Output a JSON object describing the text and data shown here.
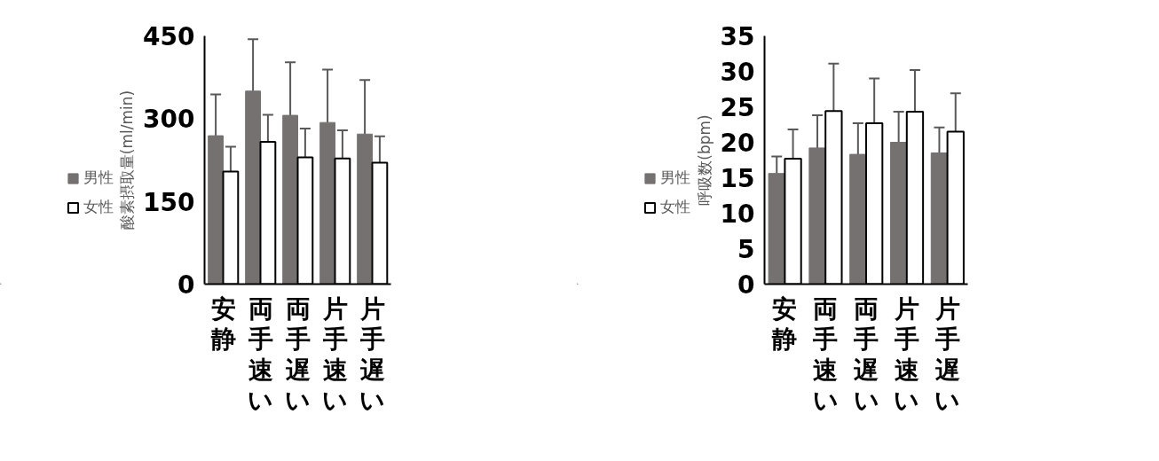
{
  "chart_data": [
    {
      "type": "bar",
      "ylabel": "酸素摂取量(ml/min)",
      "categories": [
        "安静",
        "両手速い",
        "両手遅い",
        "片手速い",
        "片手遅い"
      ],
      "ylim": [
        0,
        450
      ],
      "yticks": [
        0,
        150,
        300,
        450
      ],
      "legend": "left",
      "grid": false,
      "series": [
        {
          "name": "男性",
          "color": "#767171",
          "values": [
            269,
            350,
            306,
            293,
            272
          ],
          "errors": [
            75,
            94,
            96,
            96,
            98
          ]
        },
        {
          "name": "女性",
          "color": "#ffffff",
          "values": [
            204,
            258,
            230,
            228,
            220
          ],
          "errors": [
            45,
            49,
            52,
            51,
            48
          ]
        }
      ]
    },
    {
      "type": "bar",
      "ylabel": "呼吸数(bpm)",
      "categories": [
        "安静",
        "両手速い",
        "両手遅い",
        "片手速い",
        "片手遅い"
      ],
      "ylim": [
        0,
        35
      ],
      "yticks": [
        0,
        5,
        10,
        15,
        20,
        25,
        30,
        35
      ],
      "legend": "left",
      "grid": false,
      "series": [
        {
          "name": "男性",
          "color": "#767171",
          "values": [
            15.6,
            19.2,
            18.3,
            20.0,
            18.5
          ],
          "errors": [
            2.4,
            4.6,
            4.4,
            4.3,
            3.6
          ]
        },
        {
          "name": "女性",
          "color": "#ffffff",
          "values": [
            17.7,
            24.4,
            22.7,
            24.3,
            21.5
          ],
          "errors": [
            4.1,
            6.7,
            6.3,
            5.9,
            5.4
          ]
        }
      ]
    }
  ]
}
